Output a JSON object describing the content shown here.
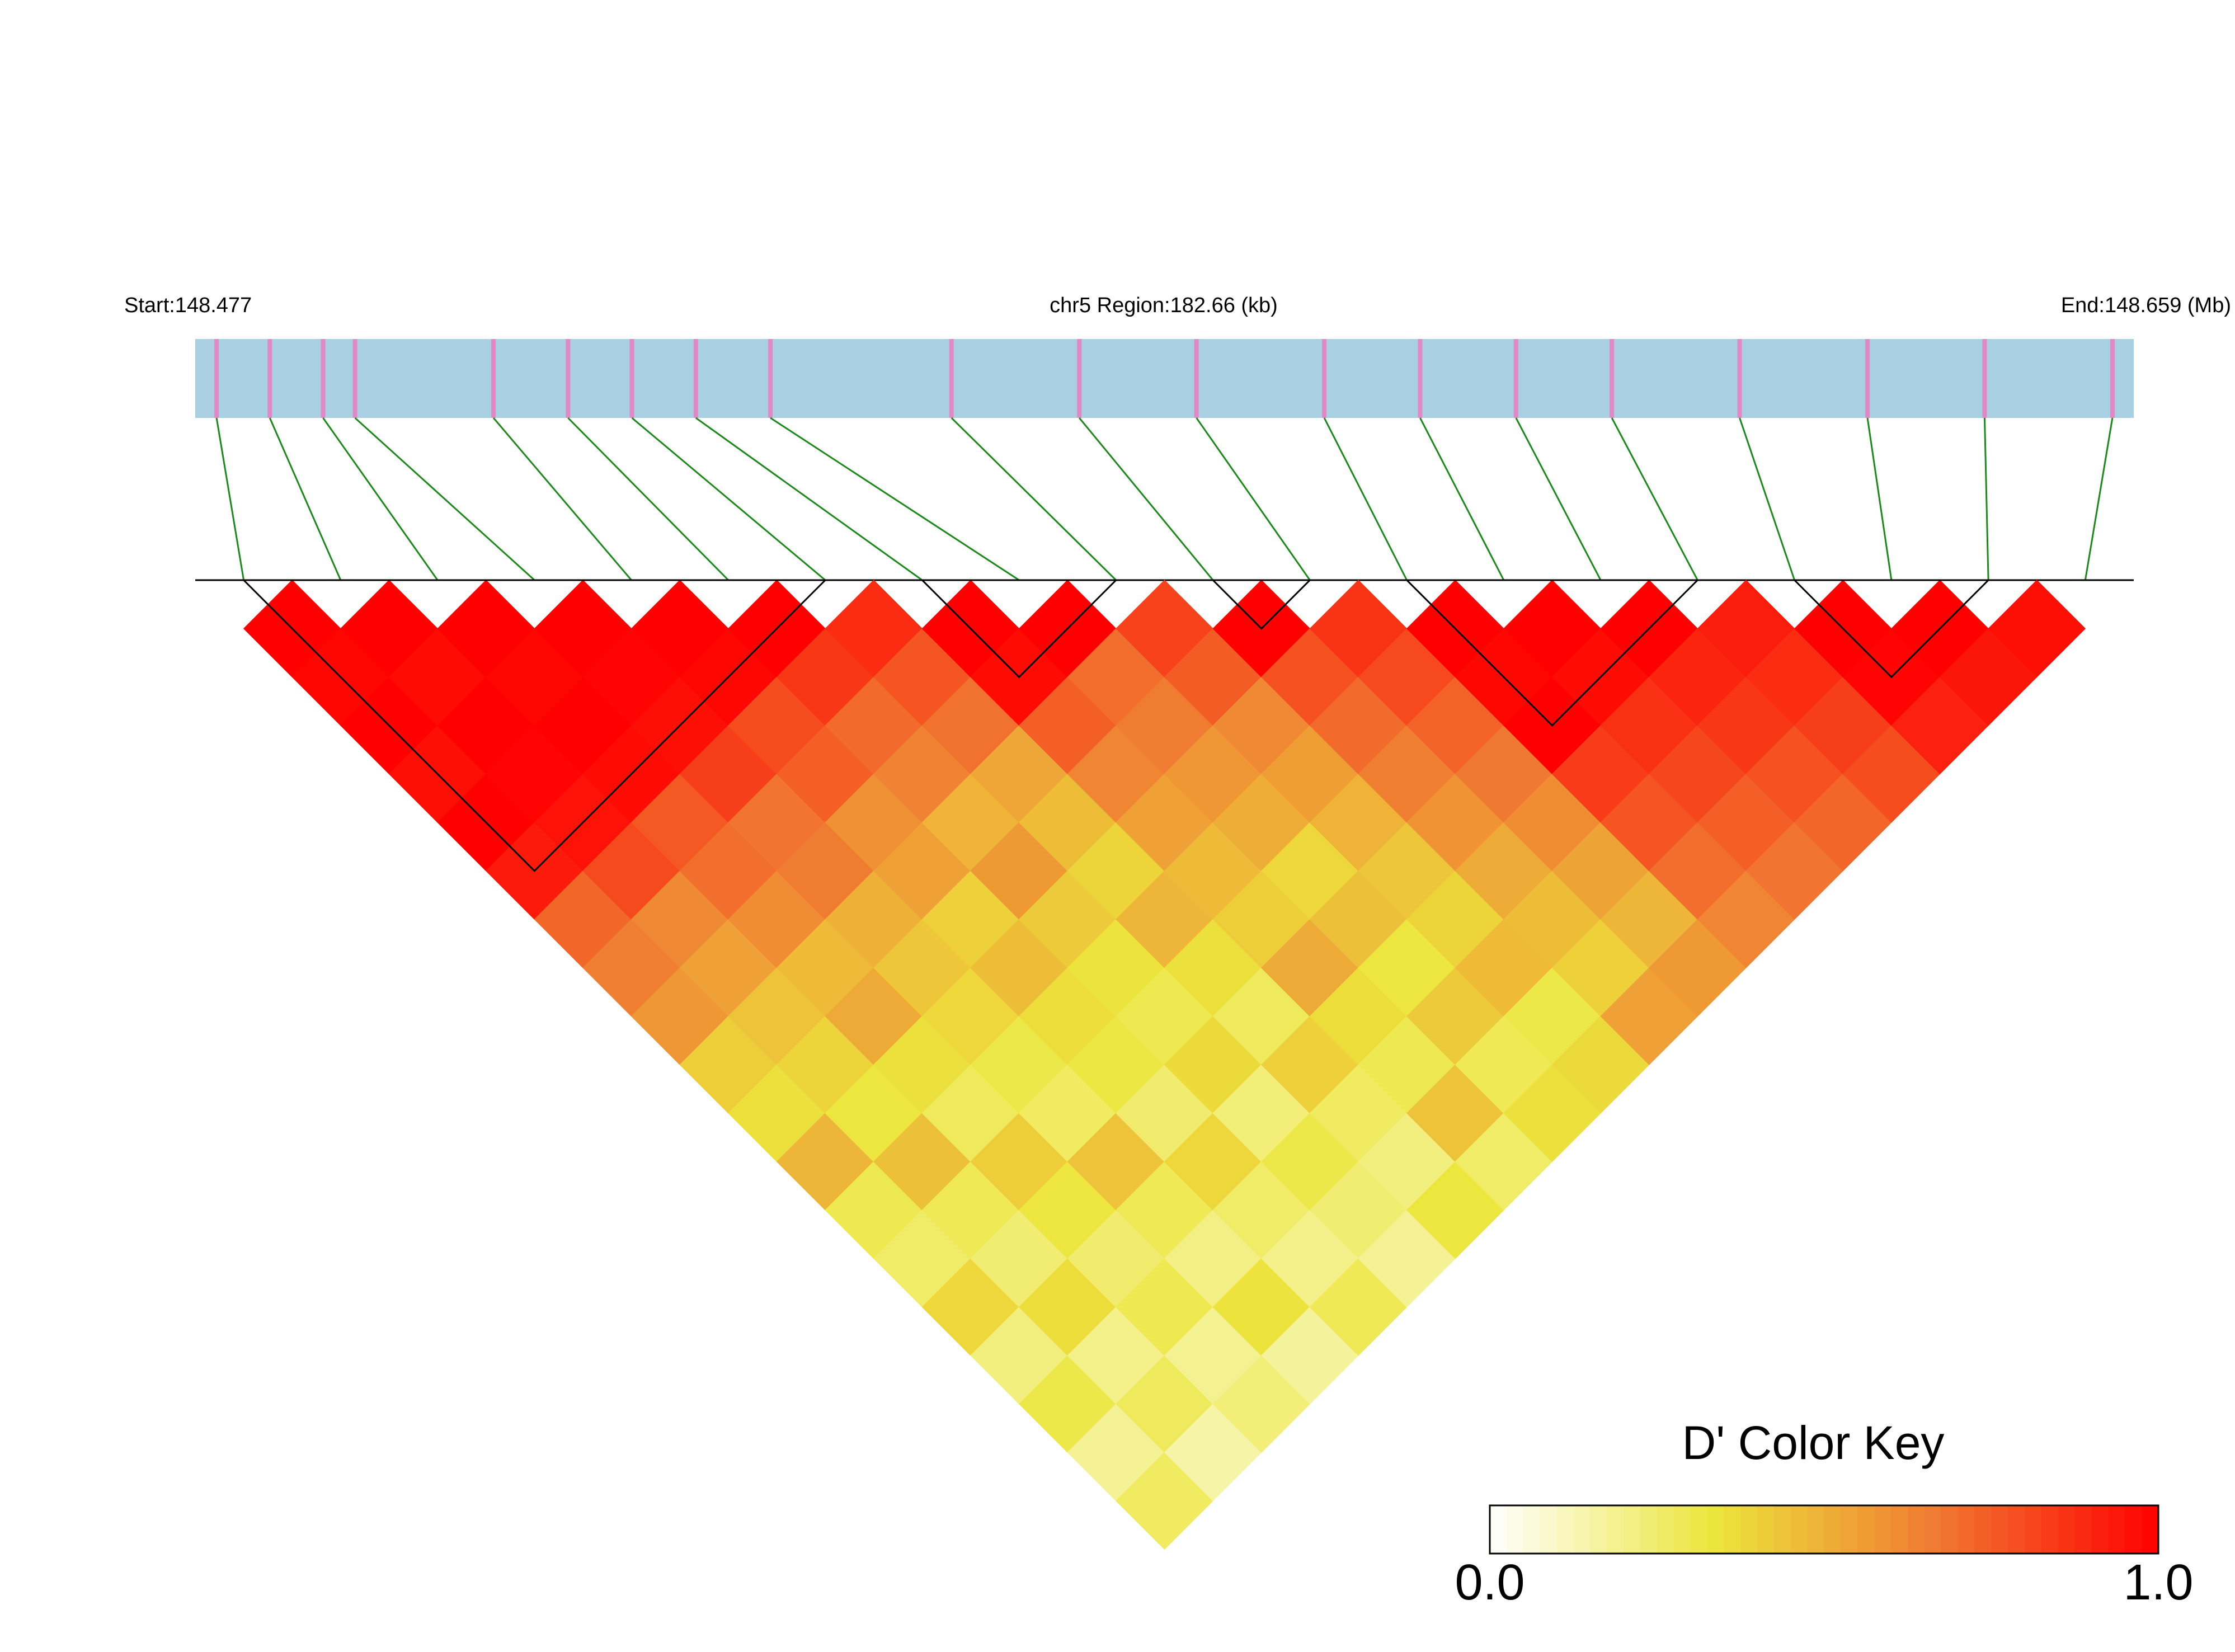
{
  "chart_data": {
    "type": "ld_heatmap",
    "start_label": "Start:148.477",
    "region_label": "chr5 Region:182.66 (kb)",
    "end_label": "End:148.659 (Mb)",
    "xlim": [
      148.477,
      148.659
    ],
    "snp_positions": [
      148.479,
      148.484,
      148.489,
      148.492,
      148.505,
      148.512,
      148.518,
      148.524,
      148.531,
      148.548,
      148.56,
      148.571,
      148.583,
      148.592,
      148.601,
      148.61,
      148.622,
      148.634,
      148.645,
      148.657
    ],
    "bar_color": "#a8cfe2",
    "snp_color": "#e388c6",
    "link_color": "#1b8a1b",
    "d_prime": [
      [
        1.0,
        0.98,
        1.0,
        0.96,
        1.0,
        0.93,
        0.72,
        0.65,
        0.58,
        0.41,
        0.35,
        0.48,
        0.3,
        0.26,
        0.38,
        0.22,
        0.31,
        0.18,
        0.27
      ],
      [
        1.0,
        0.97,
        1.0,
        0.99,
        0.95,
        0.8,
        0.62,
        0.55,
        0.44,
        0.39,
        0.33,
        0.45,
        0.29,
        0.24,
        0.36,
        0.2,
        0.28,
        0.15
      ],
      [
        1.0,
        0.98,
        1.0,
        0.97,
        0.76,
        0.7,
        0.61,
        0.47,
        0.52,
        0.35,
        0.28,
        0.41,
        0.33,
        0.25,
        0.3,
        0.19,
        0.23
      ],
      [
        1.0,
        0.99,
        0.96,
        0.83,
        0.68,
        0.66,
        0.5,
        0.43,
        0.38,
        0.31,
        0.27,
        0.44,
        0.29,
        0.21,
        0.34,
        0.17
      ],
      [
        1.0,
        0.98,
        0.79,
        0.74,
        0.6,
        0.55,
        0.4,
        0.46,
        0.36,
        0.32,
        0.25,
        0.38,
        0.26,
        0.2,
        0.29
      ],
      [
        1.0,
        0.85,
        0.71,
        0.64,
        0.49,
        0.57,
        0.42,
        0.34,
        0.3,
        0.37,
        0.23,
        0.31,
        0.24,
        0.18
      ],
      [
        0.88,
        0.77,
        0.69,
        0.53,
        0.46,
        0.39,
        0.48,
        0.35,
        0.28,
        0.4,
        0.27,
        0.22,
        0.33
      ],
      [
        1.0,
        0.97,
        0.74,
        0.63,
        0.55,
        0.47,
        0.41,
        0.52,
        0.36,
        0.3,
        0.44,
        0.26
      ],
      [
        1.0,
        0.7,
        0.66,
        0.58,
        0.51,
        0.38,
        0.45,
        0.33,
        0.42,
        0.29,
        0.35
      ],
      [
        0.82,
        0.75,
        0.62,
        0.56,
        0.49,
        0.43,
        0.39,
        0.47,
        0.31,
        0.37
      ],
      [
        1.0,
        0.78,
        0.71,
        0.65,
        0.59,
        0.52,
        0.46,
        0.4,
        0.55
      ],
      [
        0.86,
        0.8,
        0.73,
        0.67,
        0.61,
        0.54,
        0.48,
        0.57
      ],
      [
        1.0,
        0.98,
        1.0,
        0.84,
        0.77,
        0.7,
        0.63
      ],
      [
        1.0,
        0.97,
        0.87,
        0.81,
        0.74,
        0.68
      ],
      [
        1.0,
        0.9,
        0.85,
        0.78,
        0.72
      ],
      [
        0.92,
        0.88,
        0.83,
        0.79
      ],
      [
        1.0,
        0.99,
        0.91
      ],
      [
        1.0,
        0.94
      ],
      [
        0.96
      ]
    ],
    "blocks": [
      [
        0,
        6
      ],
      [
        7,
        9
      ],
      [
        10,
        11
      ],
      [
        12,
        15
      ],
      [
        16,
        18
      ]
    ],
    "color_scale": [
      "#ffffff",
      "#ece63c",
      "#f07a32",
      "#ff0000"
    ],
    "key_title": "D' Color Key",
    "key_lim": [
      0,
      1
    ],
    "key_ticks": [
      {
        "value": 0,
        "label": "0.0"
      },
      {
        "value": 1,
        "label": "1.0"
      }
    ]
  }
}
